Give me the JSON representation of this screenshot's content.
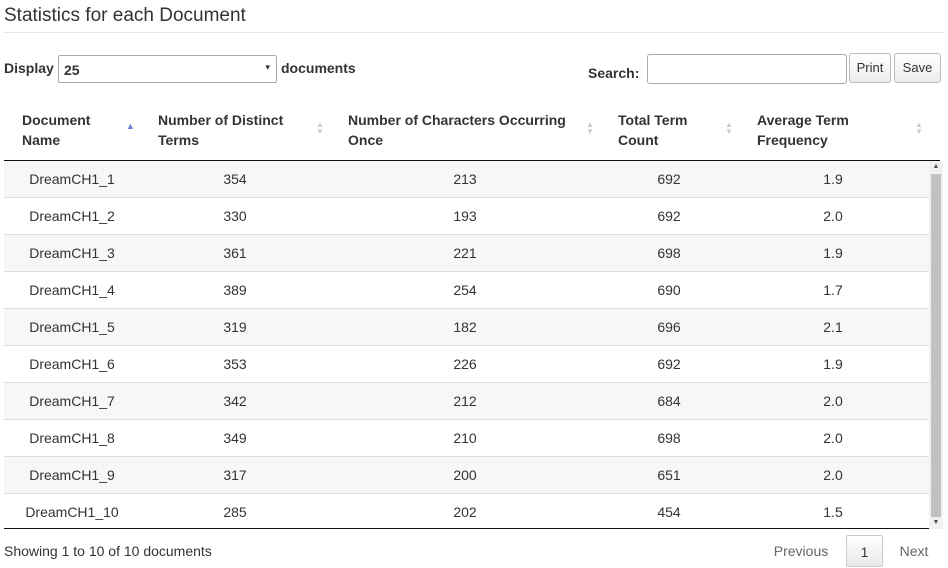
{
  "title": "Statistics for each Document",
  "controls": {
    "display_label": "Display",
    "display_value": "25",
    "documents_label": "documents",
    "search_label": "Search:",
    "search_value": "",
    "print_label": "Print",
    "save_label": "Save"
  },
  "table": {
    "headers": [
      {
        "line1": "Document",
        "line2": "Name",
        "sort": "asc"
      },
      {
        "line1": "Number of Distinct",
        "line2": "Terms",
        "sort": "both"
      },
      {
        "line1": "Number of Characters Occurring",
        "line2": "Once",
        "sort": "both"
      },
      {
        "line1": "Total Term",
        "line2": "Count",
        "sort": "both"
      },
      {
        "line1": "Average Term",
        "line2": "Frequency",
        "sort": "both"
      }
    ],
    "rows": [
      [
        "DreamCH1_1",
        "354",
        "213",
        "692",
        "1.9"
      ],
      [
        "DreamCH1_2",
        "330",
        "193",
        "692",
        "2.0"
      ],
      [
        "DreamCH1_3",
        "361",
        "221",
        "698",
        "1.9"
      ],
      [
        "DreamCH1_4",
        "389",
        "254",
        "690",
        "1.7"
      ],
      [
        "DreamCH1_5",
        "319",
        "182",
        "696",
        "2.1"
      ],
      [
        "DreamCH1_6",
        "353",
        "226",
        "692",
        "1.9"
      ],
      [
        "DreamCH1_7",
        "342",
        "212",
        "684",
        "2.0"
      ],
      [
        "DreamCH1_8",
        "349",
        "210",
        "698",
        "2.0"
      ],
      [
        "DreamCH1_9",
        "317",
        "200",
        "651",
        "2.0"
      ],
      [
        "DreamCH1_10",
        "285",
        "202",
        "454",
        "1.5"
      ]
    ]
  },
  "footer": {
    "info": "Showing 1 to 10 of 10 documents",
    "previous": "Previous",
    "page": "1",
    "next": "Next"
  },
  "icons": {
    "select_caret": "▾",
    "sort_up": "▲",
    "sort_down": "▼"
  }
}
